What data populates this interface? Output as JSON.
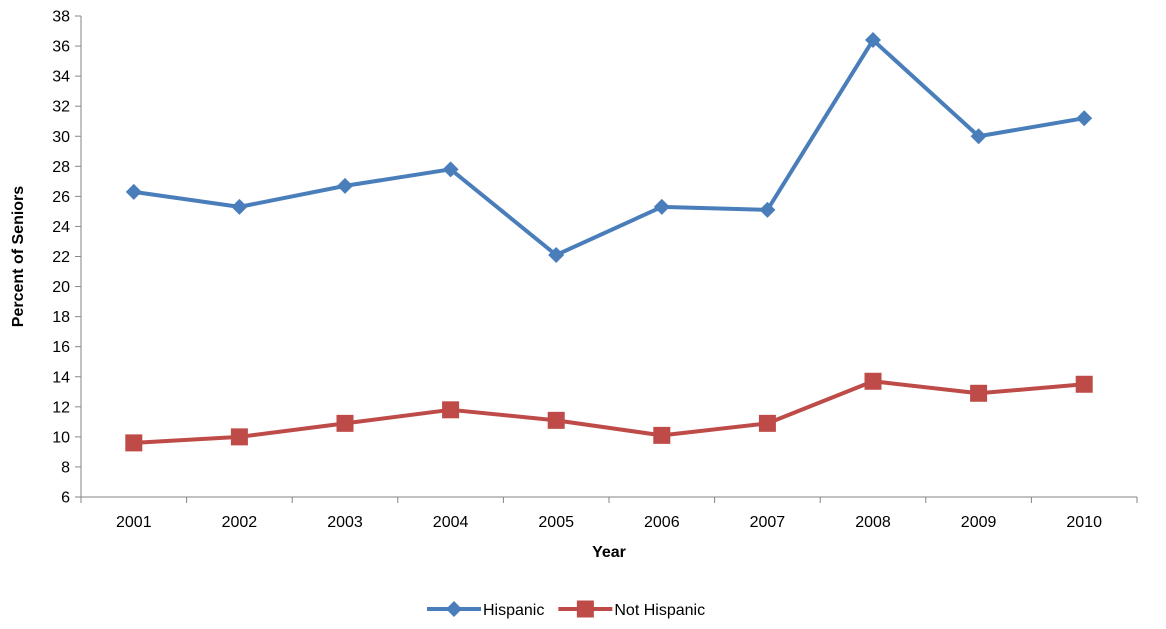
{
  "chart_data": {
    "type": "line",
    "title": "",
    "xlabel": "Year",
    "ylabel": "Percent of Seniors",
    "categories": [
      "2001",
      "2002",
      "2003",
      "2004",
      "2005",
      "2006",
      "2007",
      "2008",
      "2009",
      "2010"
    ],
    "ylim": [
      6,
      38
    ],
    "y_ticks": [
      6,
      8,
      10,
      12,
      14,
      16,
      18,
      20,
      22,
      24,
      26,
      28,
      30,
      32,
      34,
      36,
      38
    ],
    "grid": false,
    "legend_position": "bottom",
    "series": [
      {
        "name": "Hispanic",
        "color": "#4a7ebb",
        "marker": "diamond",
        "values": [
          26.3,
          25.3,
          26.7,
          27.8,
          22.1,
          25.3,
          25.1,
          36.4,
          30.0,
          31.2
        ]
      },
      {
        "name": "Not Hispanic",
        "color": "#be4b48",
        "marker": "square",
        "values": [
          9.6,
          10.0,
          10.9,
          11.8,
          11.1,
          10.1,
          10.9,
          13.7,
          12.9,
          13.5
        ]
      }
    ]
  }
}
